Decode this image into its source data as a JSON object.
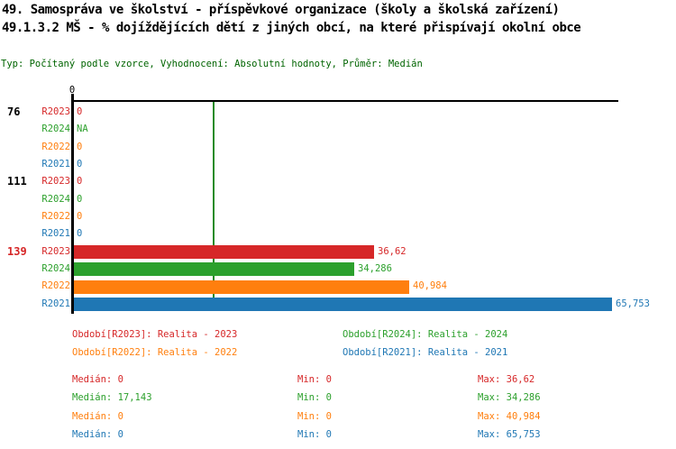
{
  "header": {
    "title_line1": "49. Samospráva ve školství - příspěvkové organizace (školy a školská zařízení)",
    "title_line2": "49.1.3.2 MŠ - % dojíždějících dětí z jiných obcí, na které přispívají okolní obce",
    "subtitle": "Typ: Počítaný podle vzorce, Vyhodnocení: Absolutní hodnoty, Průměr: Medián"
  },
  "chart_data": {
    "type": "bar",
    "orientation": "horizontal",
    "title": "49.1.3.2 MŠ - % dojíždějících dětí z jiných obcí, na které přispívají okolní obce",
    "x_axis": {
      "min": 0,
      "zero_label": "0",
      "approx_visible_max": 73
    },
    "series_order": [
      "R2023",
      "R2024",
      "R2022",
      "R2021"
    ],
    "series_colors": {
      "R2023": "#d62728",
      "R2024": "#2ca02c",
      "R2022": "#ff7f0e",
      "R2021": "#1f77b4"
    },
    "highlight_color": "#d62728",
    "median_line": {
      "series": "R2024",
      "value": 17.143,
      "color": "#228b22"
    },
    "groups": [
      {
        "label": "76",
        "highlighted": false,
        "rows": [
          {
            "series": "R2023",
            "value": 0,
            "display": "0"
          },
          {
            "series": "R2024",
            "value": null,
            "display": "NA"
          },
          {
            "series": "R2022",
            "value": 0,
            "display": "0"
          },
          {
            "series": "R2021",
            "value": 0,
            "display": "0"
          }
        ]
      },
      {
        "label": "111",
        "highlighted": false,
        "rows": [
          {
            "series": "R2023",
            "value": 0,
            "display": "0"
          },
          {
            "series": "R2024",
            "value": 0,
            "display": "0"
          },
          {
            "series": "R2022",
            "value": 0,
            "display": "0"
          },
          {
            "series": "R2021",
            "value": 0,
            "display": "0"
          }
        ]
      },
      {
        "label": "139",
        "highlighted": true,
        "rows": [
          {
            "series": "R2023",
            "value": 36.62,
            "display": "36,62"
          },
          {
            "series": "R2024",
            "value": 34.286,
            "display": "34,286"
          },
          {
            "series": "R2022",
            "value": 40.984,
            "display": "40,984"
          },
          {
            "series": "R2021",
            "value": 65.753,
            "display": "65,753"
          }
        ]
      }
    ]
  },
  "legend": {
    "items": [
      {
        "label": "Období[R2023]: Realita - 2023",
        "color": "#d62728"
      },
      {
        "label": "Období[R2024]: Realita - 2024",
        "color": "#2ca02c"
      },
      {
        "label": "Období[R2022]: Realita - 2022",
        "color": "#ff7f0e"
      },
      {
        "label": "Období[R2021]: Realita - 2021",
        "color": "#1f77b4"
      }
    ]
  },
  "stats": {
    "median_label": "Medián:",
    "min_label": "Min:",
    "max_label": "Max:",
    "rows": [
      {
        "series": "R2023",
        "color": "#d62728",
        "median": "0",
        "min": "0",
        "max": "36,62"
      },
      {
        "series": "R2024",
        "color": "#2ca02c",
        "median": "17,143",
        "min": "0",
        "max": "34,286"
      },
      {
        "series": "R2022",
        "color": "#ff7f0e",
        "median": "0",
        "min": "0",
        "max": "40,984"
      },
      {
        "series": "R2021",
        "color": "#1f77b4",
        "median": "0",
        "min": "0",
        "max": "65,753"
      }
    ]
  }
}
